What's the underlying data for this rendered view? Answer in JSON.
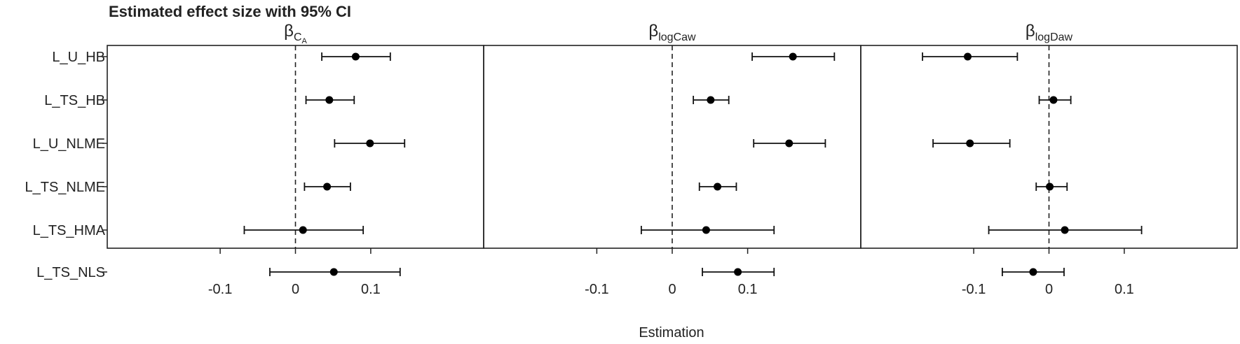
{
  "chart_data": {
    "type": "forest",
    "title": "Estimated effect size with 95% CI",
    "xlabel": "Estimation",
    "categories": [
      "L_U_HB",
      "L_TS_HB",
      "L_U_NLME",
      "L_TS_NLME",
      "L_TS_HMA",
      "L_TS_NLS"
    ],
    "xlim": [
      -0.25,
      0.25
    ],
    "xticks": [
      -0.1,
      0,
      0.1
    ],
    "xtick_labels": [
      "-0.1",
      "0",
      "0.1"
    ],
    "reference_line": 0,
    "grid": false,
    "panels": [
      {
        "title_main": "β",
        "title_sub": "C",
        "title_subsub": "A",
        "estimates": [
          0.08,
          0.045,
          0.099,
          0.042,
          0.01,
          0.051
        ],
        "lower": [
          0.035,
          0.014,
          0.052,
          0.012,
          -0.068,
          -0.034
        ],
        "upper": [
          0.126,
          0.078,
          0.145,
          0.073,
          0.09,
          0.139
        ]
      },
      {
        "title_main": "β",
        "title_sub": "logCaw",
        "title_subsub": "",
        "estimates": [
          0.16,
          0.051,
          0.155,
          0.06,
          0.045,
          0.087
        ],
        "lower": [
          0.106,
          0.028,
          0.108,
          0.036,
          -0.041,
          0.04
        ],
        "upper": [
          0.215,
          0.075,
          0.203,
          0.085,
          0.135,
          0.135
        ]
      },
      {
        "title_main": "β",
        "title_sub": "logDaw",
        "title_subsub": "",
        "estimates": [
          -0.108,
          0.006,
          -0.105,
          0.001,
          0.021,
          -0.021
        ],
        "lower": [
          -0.168,
          -0.013,
          -0.154,
          -0.017,
          -0.08,
          -0.062
        ],
        "upper": [
          -0.042,
          0.029,
          -0.052,
          0.024,
          0.123,
          0.02
        ]
      }
    ]
  }
}
